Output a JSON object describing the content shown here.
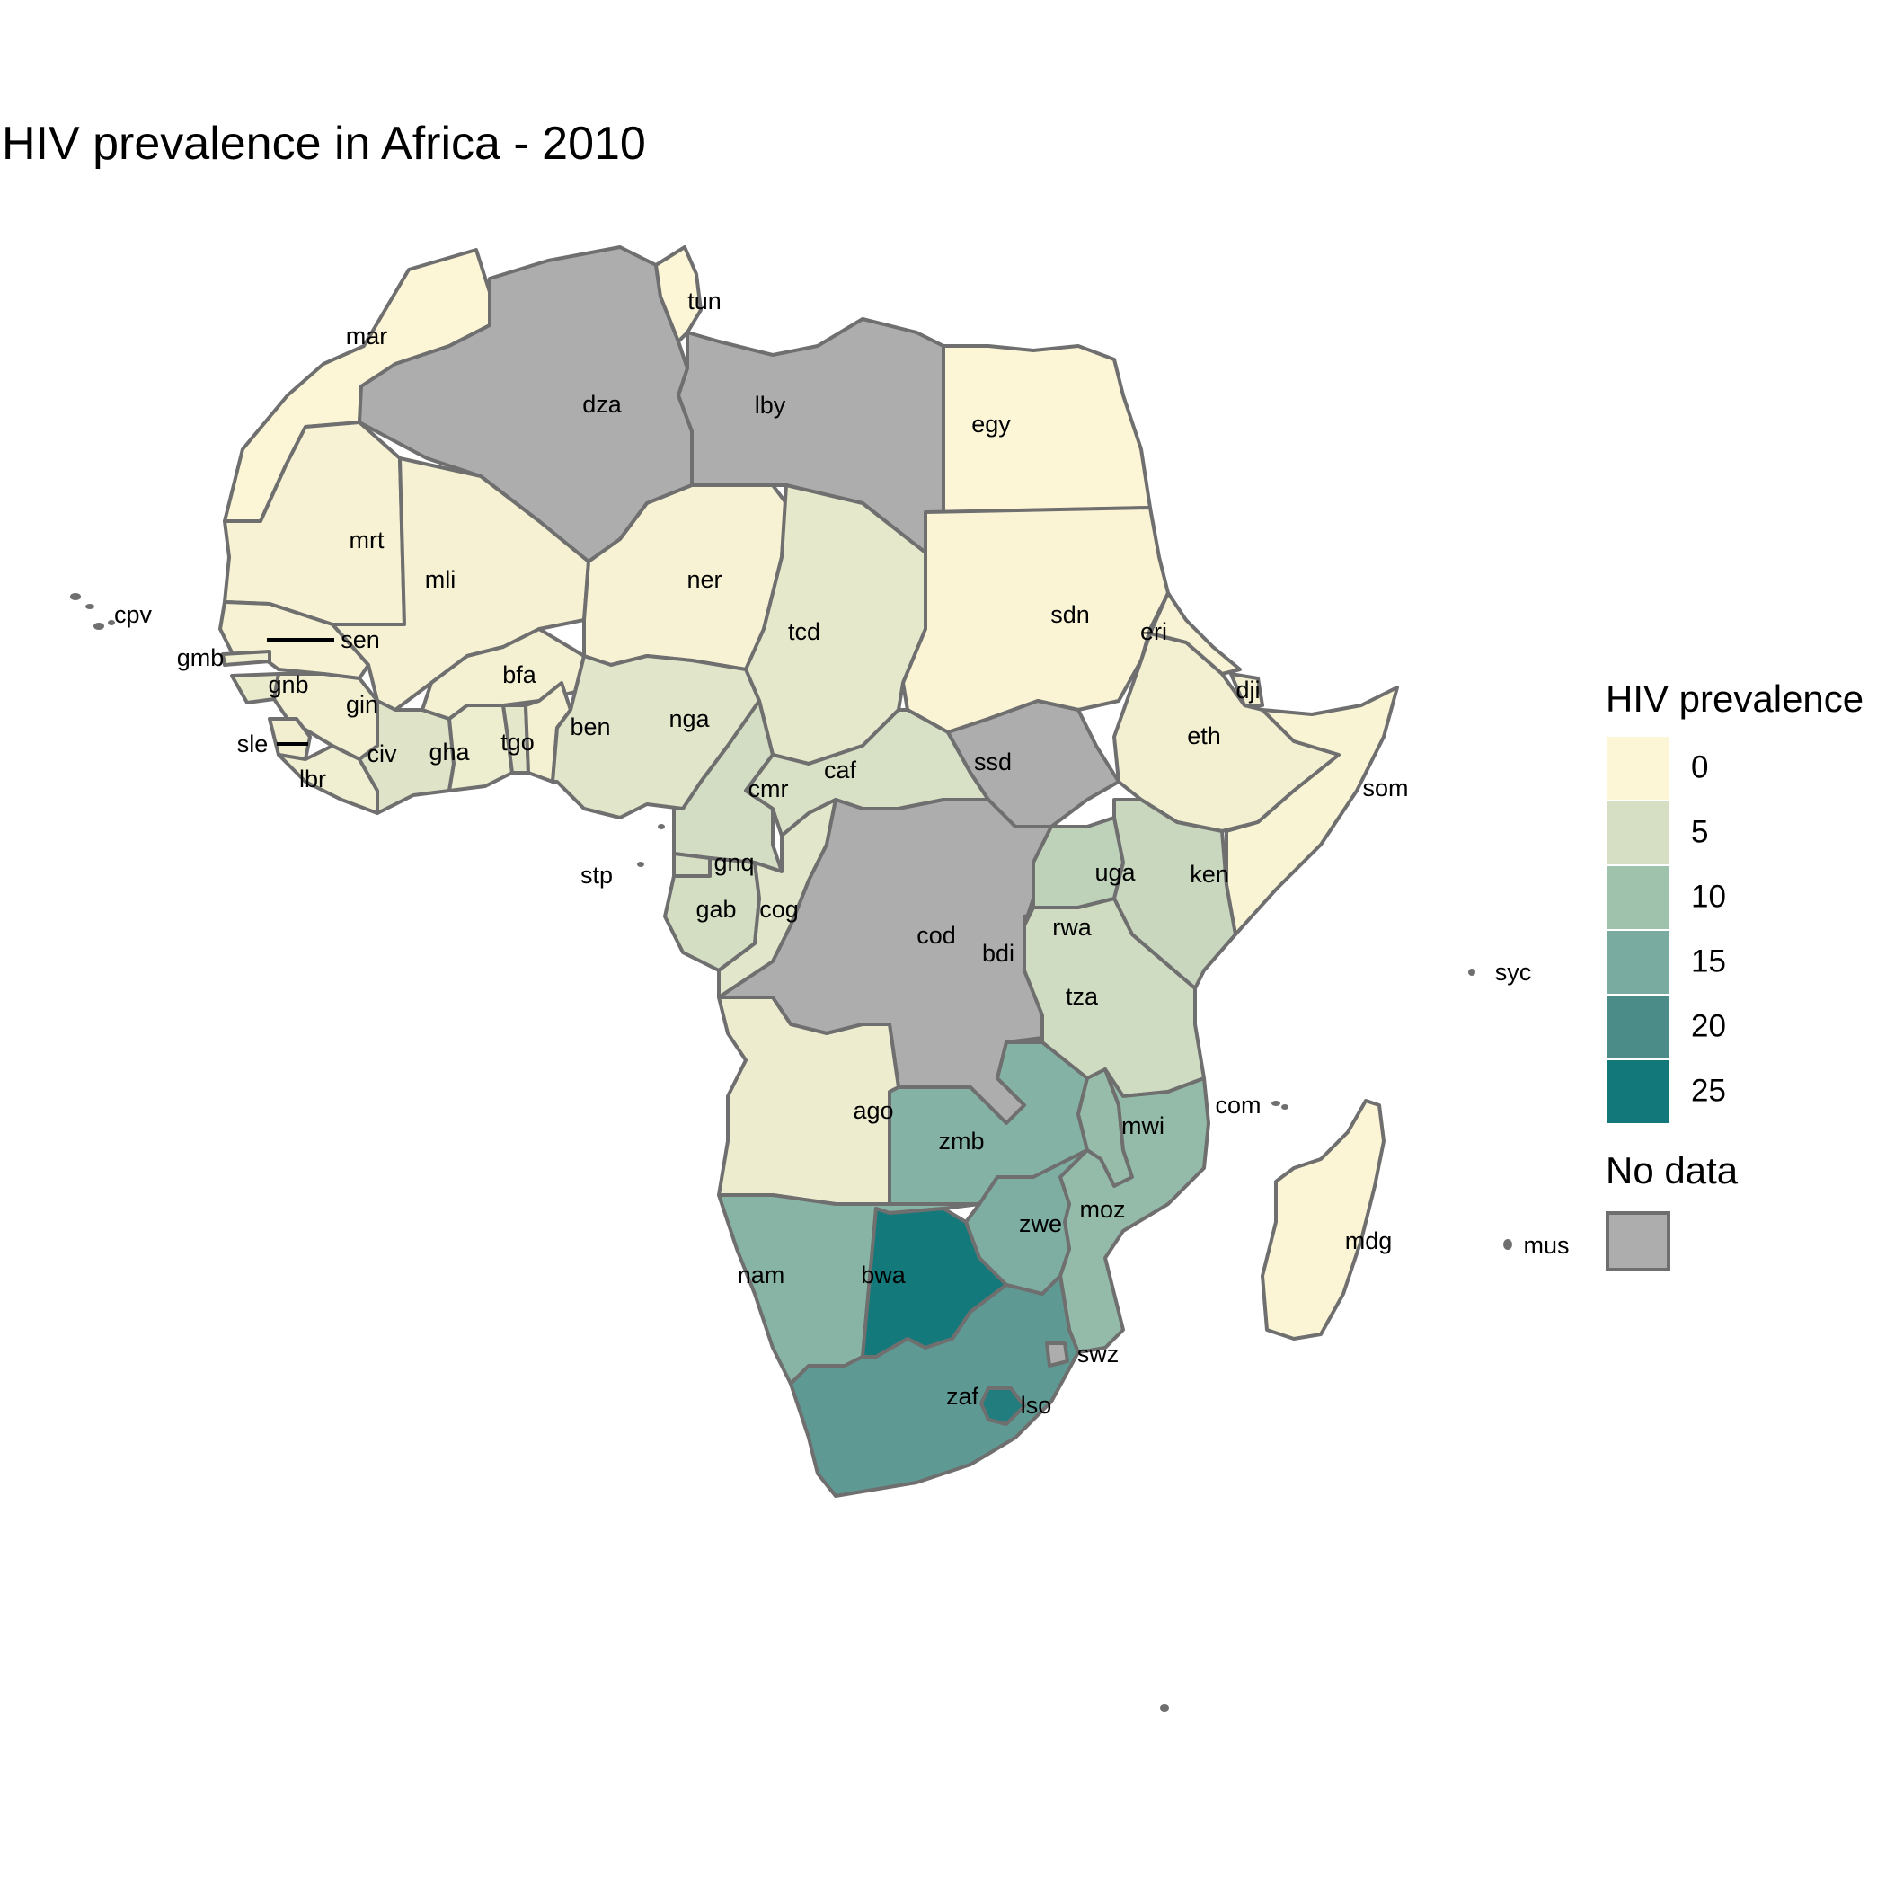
{
  "title": "HIV prevalence in Africa - 2010",
  "colors": {
    "no_data": "#adadad",
    "border": "#6f6f6f",
    "scale": [
      "#fdf6d6",
      "#d6dfc4",
      "#9fc2ad",
      "#79aba0",
      "#4b8b88",
      "#12787a"
    ]
  },
  "legend": {
    "title": "HIV prevalence",
    "breaks": [
      "0",
      "5",
      "10",
      "15",
      "20",
      "25"
    ],
    "no_data_title": "No data"
  },
  "countries": [
    {
      "code": "mar",
      "value": 0.1
    },
    {
      "code": "dza",
      "value": null
    },
    {
      "code": "tun",
      "value": 0.1
    },
    {
      "code": "lby",
      "value": null
    },
    {
      "code": "egy",
      "value": 0.1
    },
    {
      "code": "mrt",
      "value": 0.8
    },
    {
      "code": "mli",
      "value": 1.0
    },
    {
      "code": "ner",
      "value": 0.8
    },
    {
      "code": "tcd",
      "value": 3.1
    },
    {
      "code": "sdn",
      "value": 0.4
    },
    {
      "code": "eri",
      "value": 0.6
    },
    {
      "code": "dji",
      "value": 1.4
    },
    {
      "code": "eth",
      "value": 1.4
    },
    {
      "code": "som",
      "value": 0.5
    },
    {
      "code": "sen",
      "value": 0.9
    },
    {
      "code": "gmb",
      "value": 1.5
    },
    {
      "code": "gnb",
      "value": 2.5
    },
    {
      "code": "gin",
      "value": 1.4
    },
    {
      "code": "sle",
      "value": 1.6
    },
    {
      "code": "lbr",
      "value": 1.5
    },
    {
      "code": "civ",
      "value": 3.9
    },
    {
      "code": "gha",
      "value": 2.0
    },
    {
      "code": "tgo",
      "value": 3.2
    },
    {
      "code": "ben",
      "value": 1.2
    },
    {
      "code": "bfa",
      "value": 1.2
    },
    {
      "code": "nga",
      "value": 3.6
    },
    {
      "code": "cmr",
      "value": 5.3
    },
    {
      "code": "caf",
      "value": 4.7
    },
    {
      "code": "ssd",
      "value": null
    },
    {
      "code": "gnq",
      "value": 5.0
    },
    {
      "code": "gab",
      "value": 5.2
    },
    {
      "code": "cog",
      "value": 3.4
    },
    {
      "code": "cod",
      "value": null
    },
    {
      "code": "uga",
      "value": 7.3
    },
    {
      "code": "ken",
      "value": 6.3
    },
    {
      "code": "rwa",
      "value": 2.9
    },
    {
      "code": "bdi",
      "value": 3.3
    },
    {
      "code": "tza",
      "value": 5.6
    },
    {
      "code": "ago",
      "value": 2.1
    },
    {
      "code": "zmb",
      "value": 13.5
    },
    {
      "code": "mwi",
      "value": 11.0
    },
    {
      "code": "moz",
      "value": 11.5
    },
    {
      "code": "zwe",
      "value": 14.3
    },
    {
      "code": "nam",
      "value": 13.1
    },
    {
      "code": "bwa",
      "value": 24.8
    },
    {
      "code": "zaf",
      "value": 17.8
    },
    {
      "code": "lso",
      "value": 23.6
    },
    {
      "code": "swz",
      "value": null
    },
    {
      "code": "mdg",
      "value": 0.3
    },
    {
      "code": "cpv",
      "value": 0.3
    },
    {
      "code": "stp",
      "value": 1.0
    },
    {
      "code": "com",
      "value": 0.1
    },
    {
      "code": "syc",
      "value": null
    },
    {
      "code": "mus",
      "value": 1.0
    }
  ]
}
